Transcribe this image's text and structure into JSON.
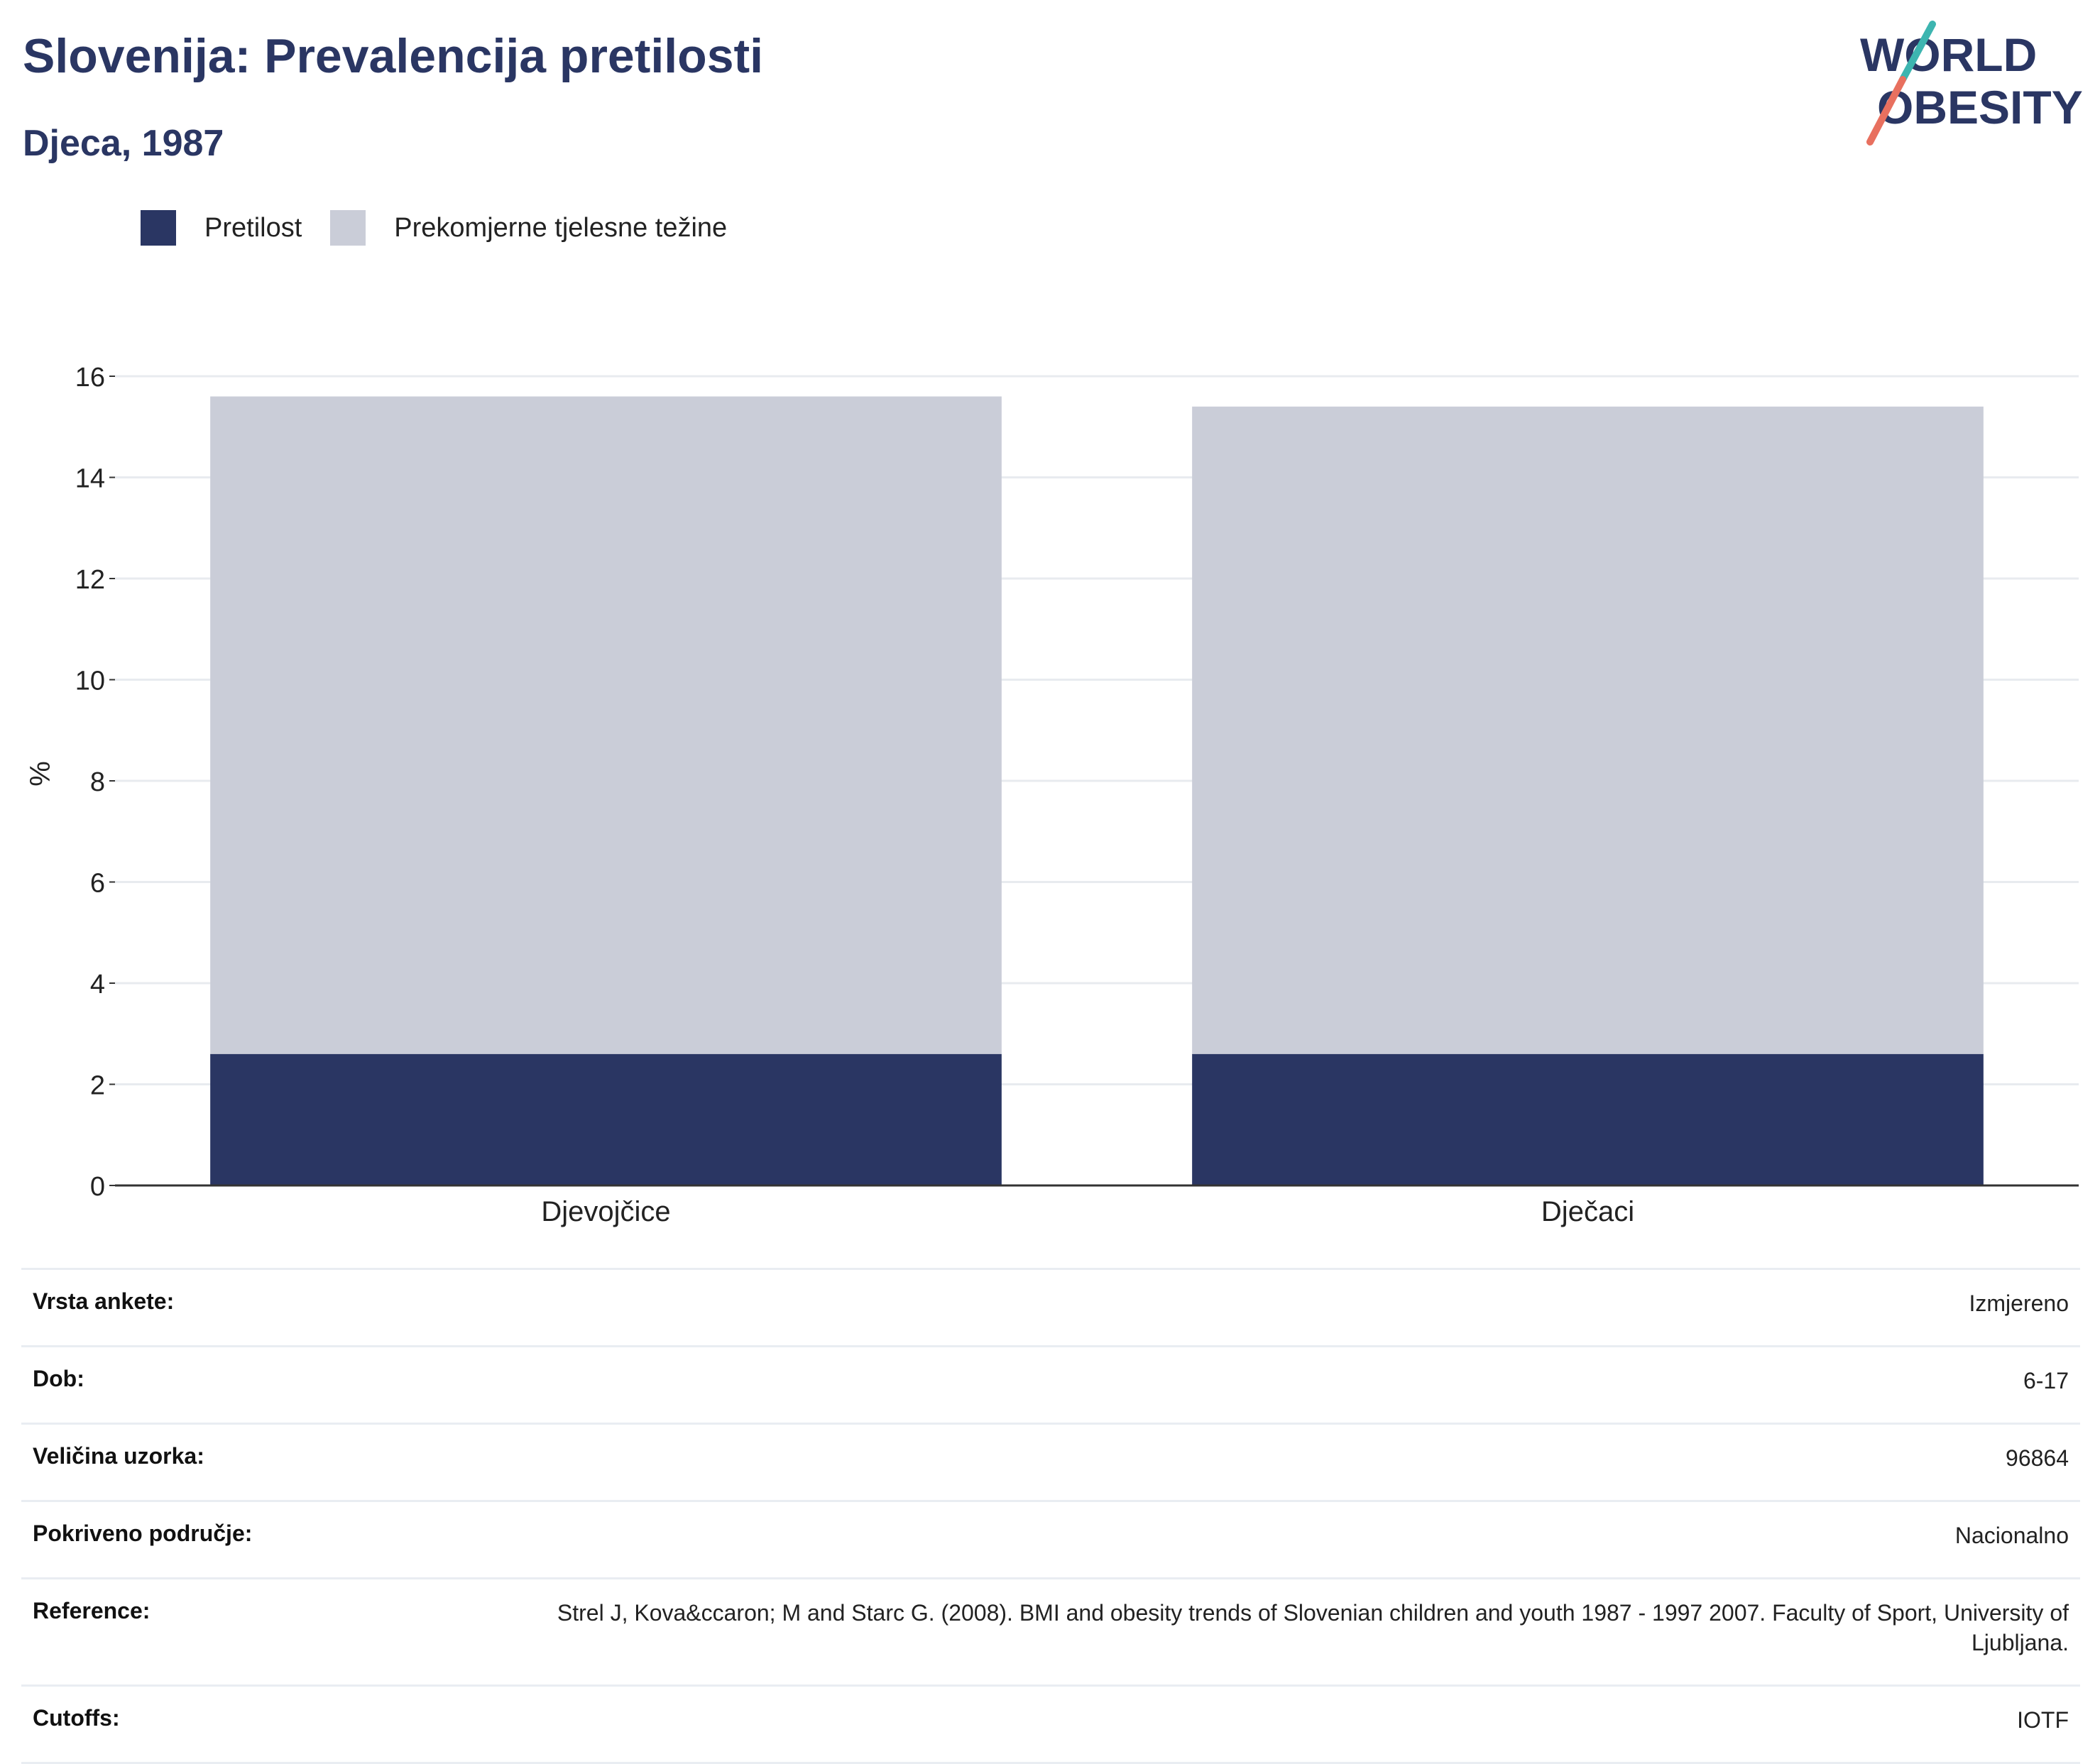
{
  "header": {
    "title": "Slovenija: Prevalencija pretilosti",
    "subtitle": "Djeca, 1987"
  },
  "logo": {
    "line1": "WORLD",
    "line2": "OBESITY",
    "colors": {
      "text": "#2a3663",
      "slash_top": "#3db5b0",
      "slash_bottom": "#e8705f"
    }
  },
  "colors": {
    "obesity": "#2a3663",
    "overweight": "#cacdd8",
    "grid": "#e8ebef",
    "axis": "#333333",
    "heading": "#2a3663"
  },
  "chart_data": {
    "type": "bar",
    "stacked": true,
    "categories": [
      "Djevojčice",
      "Dječaci"
    ],
    "series": [
      {
        "name": "Pretilost",
        "values": [
          2.6,
          2.6
        ]
      },
      {
        "name": "Prekomjerne tjelesne težine",
        "values": [
          13.0,
          12.8
        ]
      }
    ],
    "ylabel": "%",
    "xlabel": "",
    "ylim": [
      0,
      16
    ],
    "yticks": [
      0,
      2,
      4,
      6,
      8,
      10,
      12,
      14,
      16
    ],
    "grid": true,
    "legend_position": "top-left"
  },
  "meta": [
    {
      "label": "Vrsta ankete:",
      "value": "Izmjereno"
    },
    {
      "label": "Dob:",
      "value": "6-17"
    },
    {
      "label": "Veličina uzorka:",
      "value": "96864"
    },
    {
      "label": "Pokriveno područje:",
      "value": "Nacionalno"
    },
    {
      "label": "Reference:",
      "value": "Strel J, Kova&ccaron; M and Starc G. (2008). BMI and obesity trends of Slovenian children and youth 1987 - 1997 2007. Faculty of Sport, University of Ljubljana."
    },
    {
      "label": "Cutoffs:",
      "value": "IOTF"
    }
  ]
}
